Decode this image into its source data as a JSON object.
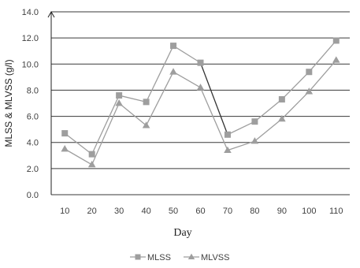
{
  "chart_data": {
    "type": "line",
    "xlabel": "Day",
    "ylabel": "MLSS & MLVSS (g/l)",
    "x": [
      10,
      20,
      30,
      40,
      50,
      60,
      70,
      80,
      90,
      100,
      110
    ],
    "ylim": [
      0,
      14
    ],
    "yticks": [
      "0.0",
      "2.0",
      "4.0",
      "6.0",
      "8.0",
      "10.0",
      "12.0",
      "14.0"
    ],
    "grid": true,
    "legend_position": "bottom",
    "series": [
      {
        "name": "MLSS",
        "marker": "square",
        "values": [
          4.7,
          3.1,
          7.6,
          7.1,
          11.4,
          10.1,
          4.6,
          5.6,
          7.3,
          9.4,
          11.8
        ],
        "color": "#9e9e9e"
      },
      {
        "name": "MLVSS",
        "marker": "triangle",
        "values": [
          3.5,
          2.3,
          7.0,
          5.3,
          9.4,
          8.2,
          3.4,
          4.1,
          5.8,
          7.9,
          10.3
        ],
        "color": "#9e9e9e"
      }
    ],
    "highlight_segment": {
      "from_x": 60,
      "to_x": 70,
      "series": "MLSS",
      "color": "#333333"
    }
  }
}
